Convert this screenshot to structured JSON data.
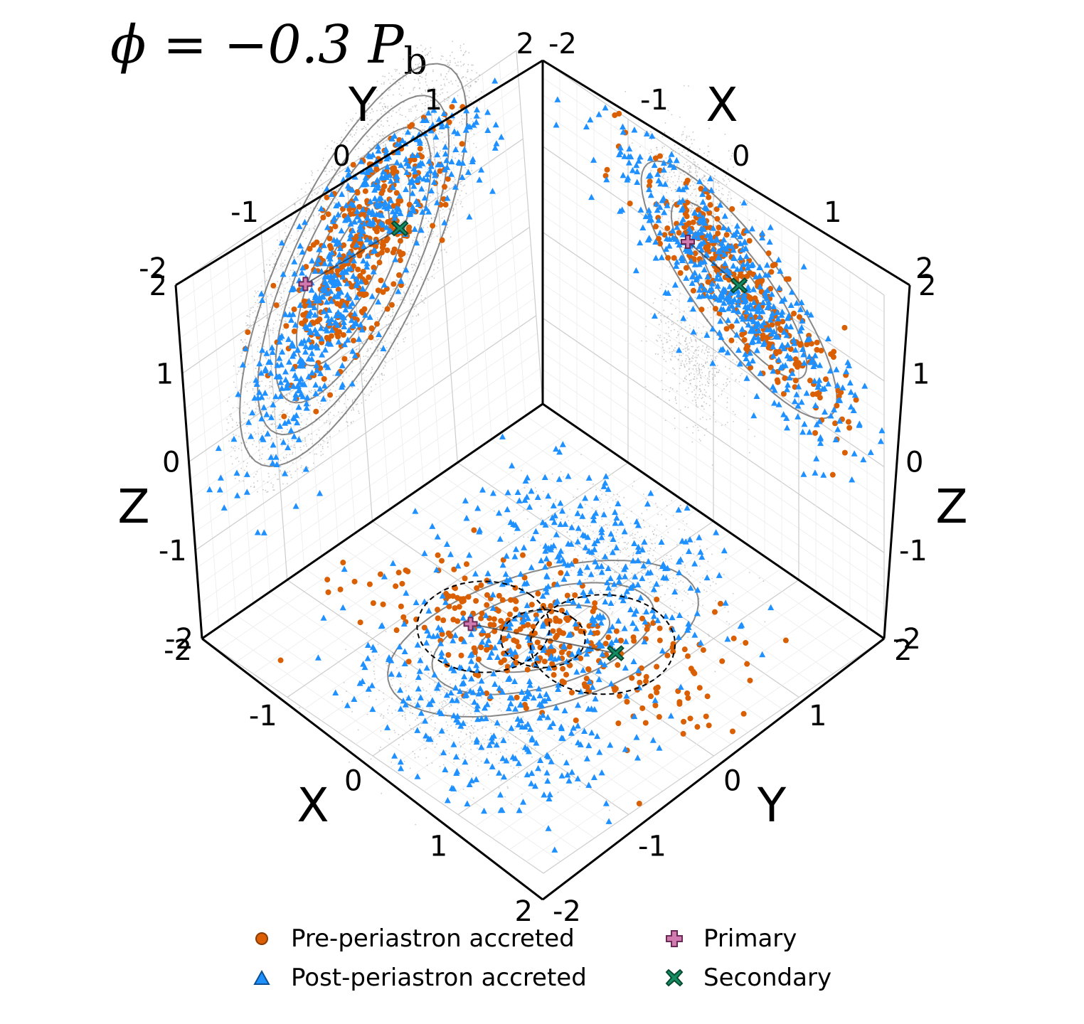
{
  "title": "ϕ = −0.3 P",
  "title_subscript": "b",
  "chart_data": {
    "type": "scatter",
    "projections": [
      "Y-Z panel (upper left)",
      "X-Z panel (upper right)",
      "X-Y panel (bottom)"
    ],
    "axes": {
      "x": {
        "label": "X",
        "ticks": [
          "-2",
          "-1",
          "0",
          "1",
          "2"
        ],
        "lim": [
          -2,
          2
        ]
      },
      "y": {
        "label": "Y",
        "ticks": [
          "-2",
          "-1",
          "0",
          "1",
          "2"
        ],
        "lim": [
          -2,
          2
        ]
      },
      "z": {
        "label": "Z",
        "ticks": [
          "-2",
          "-1",
          "0",
          "1",
          "2"
        ],
        "lim": [
          -2,
          2
        ]
      }
    },
    "grid": true,
    "legend_position": "bottom",
    "series": [
      {
        "name": "Pre-periastron accreted",
        "marker": "circle",
        "color": "#d95f02"
      },
      {
        "name": "Post-periastron accreted",
        "marker": "triangle",
        "color": "#1e90ff"
      },
      {
        "name": "Primary",
        "marker": "plus",
        "color": "#d17ab0"
      },
      {
        "name": "Secondary",
        "marker": "x",
        "color": "#138d63"
      }
    ],
    "stars": {
      "primary": {
        "x": -0.3,
        "y": -0.55,
        "z": 1.05
      },
      "secondary": {
        "x": 0.3,
        "y": 0.55,
        "z": 0.95
      }
    }
  },
  "colors": {
    "pre": "#d95f02",
    "post": "#1e90ff",
    "primary": "#d17ab0",
    "secondary": "#138d63",
    "background_gas": "#9a9a9a",
    "streamline": "#555555"
  },
  "legend": {
    "pre_label": "Pre-periastron accreted",
    "post_label": "Post-periastron accreted",
    "primary_label": "Primary",
    "secondary_label": "Secondary"
  }
}
